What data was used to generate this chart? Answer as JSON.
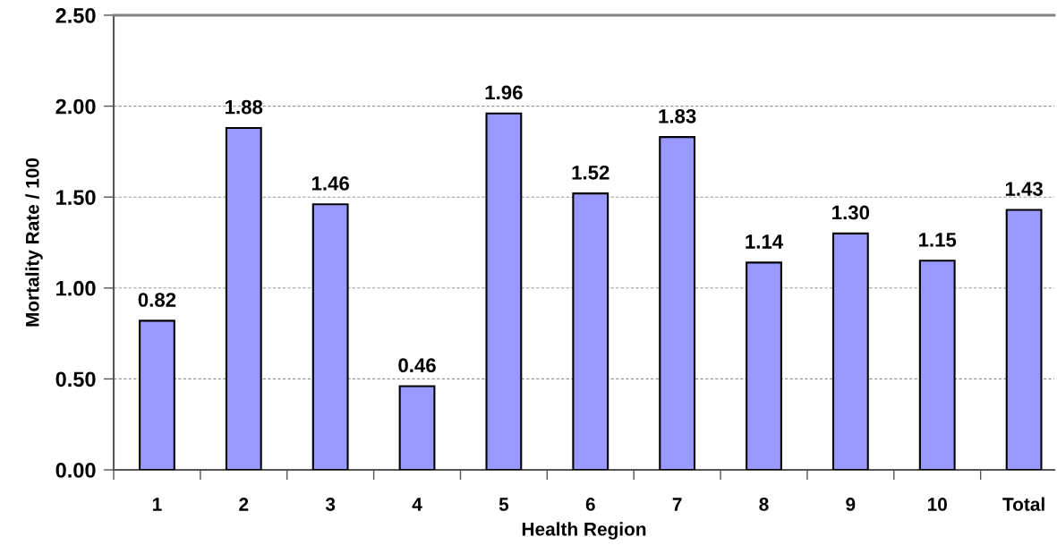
{
  "chart_data": {
    "type": "bar",
    "xlabel": "Health Region",
    "ylabel": "Mortality Rate / 100",
    "categories": [
      "1",
      "2",
      "3",
      "4",
      "5",
      "6",
      "7",
      "8",
      "9",
      "10",
      "Total"
    ],
    "values": [
      0.82,
      1.88,
      1.46,
      0.46,
      1.96,
      1.52,
      1.83,
      1.14,
      1.3,
      1.15,
      1.43
    ],
    "value_labels": [
      "0.82",
      "1.88",
      "1.46",
      "0.46",
      "1.96",
      "1.52",
      "1.83",
      "1.14",
      "1.30",
      "1.15",
      "1.43"
    ],
    "color": "#9999ff",
    "ylim": [
      0,
      2.5
    ],
    "yticks": [
      {
        "value": 0,
        "label": "0.00"
      },
      {
        "value": 0.5,
        "label": "0.50"
      },
      {
        "value": 1.0,
        "label": "1.00"
      },
      {
        "value": 1.5,
        "label": "1.50"
      },
      {
        "value": 2.0,
        "label": "2.00"
      },
      {
        "value": 2.5,
        "label": "2.50"
      }
    ],
    "grid": "y"
  }
}
